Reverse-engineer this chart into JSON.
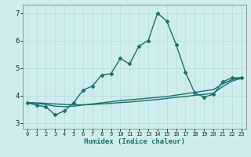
{
  "xlabel": "Humidex (Indice chaleur)",
  "xlim": [
    -0.5,
    23.5
  ],
  "ylim": [
    2.8,
    7.3
  ],
  "yticks": [
    3,
    4,
    5,
    6,
    7
  ],
  "xticks": [
    0,
    1,
    2,
    3,
    4,
    5,
    6,
    7,
    8,
    9,
    10,
    11,
    12,
    13,
    14,
    15,
    16,
    17,
    18,
    19,
    20,
    21,
    22,
    23
  ],
  "bg_color": "#ceeeed",
  "grid_color": "#b8dedd",
  "line_color": "#1a6e6e",
  "lines": [
    {
      "x": [
        0,
        1,
        2,
        3,
        4,
        5,
        6,
        7,
        8,
        9,
        10,
        11,
        12,
        13,
        14,
        15,
        16,
        17,
        18,
        19,
        20,
        21,
        22,
        23
      ],
      "y": [
        3.75,
        3.65,
        3.6,
        3.3,
        3.45,
        3.75,
        4.2,
        4.35,
        4.75,
        4.8,
        5.35,
        5.15,
        5.8,
        6.0,
        7.0,
        6.7,
        5.85,
        4.85,
        4.1,
        3.95,
        4.05,
        4.5,
        4.65,
        4.65
      ],
      "marker": "D",
      "markersize": 2.5,
      "linewidth": 1.0
    },
    {
      "x": [
        0,
        1,
        2,
        3,
        4,
        5,
        6,
        7,
        8,
        9,
        10,
        11,
        12,
        13,
        14,
        15,
        16,
        17,
        18,
        19,
        20,
        21,
        22,
        23
      ],
      "y": [
        3.75,
        3.72,
        3.68,
        3.62,
        3.6,
        3.62,
        3.66,
        3.7,
        3.74,
        3.78,
        3.82,
        3.85,
        3.88,
        3.91,
        3.94,
        3.97,
        4.02,
        4.07,
        4.12,
        4.17,
        4.22,
        4.43,
        4.58,
        4.65
      ],
      "marker": null,
      "markersize": 0,
      "linewidth": 1.0
    },
    {
      "x": [
        0,
        1,
        2,
        3,
        4,
        5,
        6,
        7,
        8,
        9,
        10,
        11,
        12,
        13,
        14,
        15,
        16,
        17,
        18,
        19,
        20,
        21,
        22,
        23
      ],
      "y": [
        3.75,
        3.74,
        3.72,
        3.7,
        3.68,
        3.67,
        3.67,
        3.68,
        3.7,
        3.72,
        3.75,
        3.77,
        3.8,
        3.83,
        3.86,
        3.9,
        3.94,
        3.97,
        4.01,
        4.05,
        4.09,
        4.33,
        4.53,
        4.63
      ],
      "marker": null,
      "markersize": 0,
      "linewidth": 1.0
    }
  ]
}
